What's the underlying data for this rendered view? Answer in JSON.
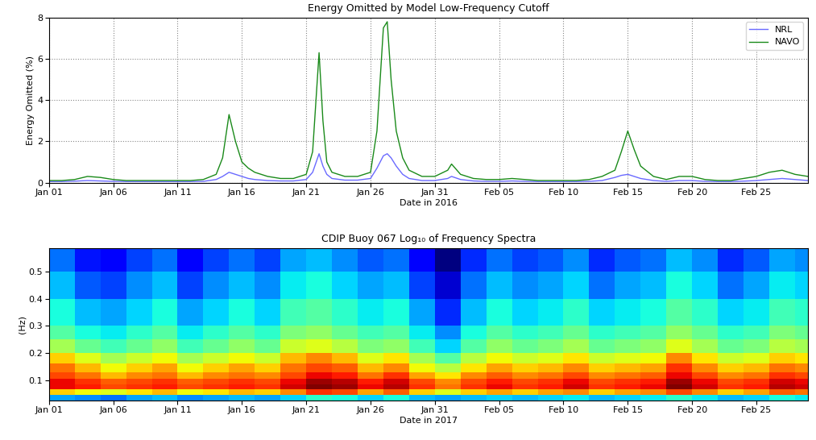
{
  "chart_data": [
    {
      "type": "line",
      "title": "Energy Omitted by Model Low-Frequency Cutoff",
      "x_label": "Date in 2016",
      "y_label": "Energy Omitted (%)",
      "xlim": [
        0,
        59
      ],
      "xticks": [
        {
          "value": 0,
          "label": "Jan 01"
        },
        {
          "value": 5,
          "label": "Jan 06"
        },
        {
          "value": 10,
          "label": "Jan 11"
        },
        {
          "value": 15,
          "label": "Jan 16"
        },
        {
          "value": 20,
          "label": "Jan 21"
        },
        {
          "value": 25,
          "label": "Jan 26"
        },
        {
          "value": 30,
          "label": "Jan 31"
        },
        {
          "value": 35,
          "label": "Feb 05"
        },
        {
          "value": 40,
          "label": "Feb 10"
        },
        {
          "value": 45,
          "label": "Feb 15"
        },
        {
          "value": 50,
          "label": "Feb 20"
        },
        {
          "value": 55,
          "label": "Feb 25"
        }
      ],
      "ylim": [
        0,
        8
      ],
      "yticks": [
        0,
        2,
        4,
        6,
        8
      ],
      "grid": true,
      "legend": "upper right",
      "x": [
        0,
        1,
        2,
        3,
        4,
        5,
        6,
        7,
        8,
        9,
        10,
        11,
        12,
        13,
        13.5,
        14,
        14.5,
        15,
        15.5,
        16,
        17,
        18,
        19,
        20,
        20.5,
        21,
        21.3,
        21.6,
        22,
        23,
        24,
        25,
        25.5,
        26,
        26.3,
        26.6,
        27,
        27.5,
        28,
        29,
        30,
        31,
        31.3,
        32,
        33,
        34,
        35,
        36,
        37,
        38,
        39,
        40,
        41,
        42,
        43,
        44,
        44.5,
        45,
        45.5,
        46,
        47,
        48,
        49,
        50,
        51,
        52,
        53,
        54,
        55,
        56,
        57,
        58,
        59
      ],
      "series": [
        {
          "name": "NRL",
          "color": "#6a6aff",
          "values": [
            0.05,
            0.05,
            0.07,
            0.1,
            0.08,
            0.06,
            0.05,
            0.05,
            0.05,
            0.05,
            0.05,
            0.05,
            0.06,
            0.15,
            0.3,
            0.5,
            0.4,
            0.3,
            0.2,
            0.15,
            0.1,
            0.08,
            0.08,
            0.15,
            0.5,
            1.4,
            0.8,
            0.4,
            0.2,
            0.12,
            0.12,
            0.2,
            0.7,
            1.3,
            1.4,
            1.2,
            0.8,
            0.4,
            0.2,
            0.1,
            0.1,
            0.2,
            0.3,
            0.15,
            0.08,
            0.06,
            0.06,
            0.08,
            0.06,
            0.05,
            0.05,
            0.05,
            0.05,
            0.06,
            0.1,
            0.25,
            0.35,
            0.4,
            0.3,
            0.2,
            0.1,
            0.06,
            0.1,
            0.1,
            0.06,
            0.05,
            0.05,
            0.07,
            0.1,
            0.15,
            0.2,
            0.15,
            0.1
          ]
        },
        {
          "name": "NAVO",
          "color": "#1a8a1a",
          "values": [
            0.1,
            0.1,
            0.15,
            0.3,
            0.25,
            0.15,
            0.1,
            0.1,
            0.1,
            0.1,
            0.1,
            0.1,
            0.15,
            0.4,
            1.2,
            3.3,
            2.0,
            1.0,
            0.7,
            0.5,
            0.3,
            0.2,
            0.2,
            0.4,
            1.5,
            6.3,
            3.0,
            1.0,
            0.5,
            0.3,
            0.3,
            0.5,
            2.5,
            7.5,
            7.8,
            5.0,
            2.5,
            1.2,
            0.6,
            0.3,
            0.3,
            0.6,
            0.9,
            0.4,
            0.2,
            0.15,
            0.15,
            0.2,
            0.15,
            0.1,
            0.1,
            0.1,
            0.1,
            0.15,
            0.3,
            0.6,
            1.5,
            2.5,
            1.6,
            0.8,
            0.3,
            0.15,
            0.3,
            0.3,
            0.15,
            0.1,
            0.1,
            0.2,
            0.3,
            0.5,
            0.6,
            0.4,
            0.3
          ]
        }
      ]
    },
    {
      "type": "heatmap",
      "title": "CDIP Buoy 067 Log₁₀ of Frequency Spectra",
      "x_label": "Date in 2017",
      "y_label": "(Hz)",
      "xlim": [
        0,
        59
      ],
      "xticks": [
        {
          "value": 0,
          "label": "Jan 01"
        },
        {
          "value": 5,
          "label": "Jan 06"
        },
        {
          "value": 10,
          "label": "Jan 11"
        },
        {
          "value": 15,
          "label": "Jan 16"
        },
        {
          "value": 20,
          "label": "Jan 21"
        },
        {
          "value": 25,
          "label": "Jan 26"
        },
        {
          "value": 30,
          "label": "Jan 31"
        },
        {
          "value": 35,
          "label": "Feb 05"
        },
        {
          "value": 40,
          "label": "Feb 10"
        },
        {
          "value": 45,
          "label": "Feb 15"
        },
        {
          "value": 50,
          "label": "Feb 20"
        },
        {
          "value": 55,
          "label": "Feb 25"
        }
      ],
      "ylim": [
        0.025,
        0.585
      ],
      "yticks": [
        0.1,
        0.2,
        0.3,
        0.4,
        0.5
      ],
      "grid": false,
      "x_edges": [
        0,
        2,
        4,
        6,
        8,
        10,
        12,
        14,
        16,
        18,
        20,
        22,
        24,
        26,
        28,
        30,
        32,
        34,
        36,
        38,
        40,
        42,
        44,
        46,
        48,
        50,
        52,
        54,
        56,
        58,
        60
      ],
      "y_edges": [
        0.025,
        0.045,
        0.065,
        0.085,
        0.105,
        0.13,
        0.16,
        0.2,
        0.25,
        0.3,
        0.4,
        0.5,
        0.585
      ],
      "cells": [
        [
          -2.0,
          -2.1,
          -2.2,
          -2.0,
          -1.9,
          -2.1,
          -2.0,
          -1.9,
          -2.0,
          -1.8,
          -1.5,
          -1.6,
          -1.8,
          -1.6,
          -1.9,
          -2.0,
          -1.9,
          -1.8,
          -1.9,
          -1.8,
          -1.7,
          -1.9,
          -1.8,
          -1.7,
          -1.5,
          -1.7,
          -1.9,
          -1.8,
          -1.6,
          -1.7
        ],
        [
          -0.3,
          -0.5,
          -0.6,
          -0.4,
          -0.2,
          -0.5,
          -0.4,
          -0.2,
          -0.3,
          0.0,
          0.4,
          0.3,
          -0.1,
          0.2,
          -0.3,
          -0.6,
          -0.3,
          -0.1,
          -0.3,
          -0.1,
          0.0,
          -0.3,
          -0.1,
          0.0,
          0.3,
          0.0,
          -0.3,
          -0.1,
          0.2,
          0.1
        ],
        [
          0.6,
          0.5,
          0.3,
          0.4,
          0.5,
          0.3,
          0.4,
          0.5,
          0.4,
          0.7,
          1.0,
          0.9,
          0.6,
          0.8,
          0.4,
          0.1,
          0.4,
          0.6,
          0.4,
          0.5,
          0.7,
          0.4,
          0.5,
          0.6,
          1.0,
          0.7,
          0.4,
          0.5,
          0.8,
          0.7
        ],
        [
          0.6,
          0.4,
          0.2,
          0.3,
          0.4,
          0.2,
          0.3,
          0.4,
          0.3,
          0.6,
          0.9,
          0.8,
          0.5,
          0.7,
          0.3,
          0.0,
          0.3,
          0.5,
          0.3,
          0.4,
          0.6,
          0.3,
          0.4,
          0.5,
          0.9,
          0.6,
          0.3,
          0.4,
          0.7,
          0.6
        ],
        [
          0.3,
          0.1,
          -0.2,
          0.0,
          0.1,
          -0.2,
          0.0,
          0.1,
          0.0,
          0.3,
          0.6,
          0.5,
          0.1,
          0.4,
          -0.1,
          -0.4,
          0.0,
          0.2,
          0.0,
          0.1,
          0.3,
          0.0,
          0.1,
          0.2,
          0.6,
          0.3,
          0.0,
          0.1,
          0.4,
          0.3
        ],
        [
          0.1,
          -0.2,
          -0.5,
          -0.3,
          -0.1,
          -0.5,
          -0.3,
          -0.1,
          -0.3,
          0.1,
          0.3,
          0.2,
          -0.2,
          0.0,
          -0.5,
          -0.8,
          -0.4,
          -0.1,
          -0.3,
          -0.2,
          0.0,
          -0.3,
          -0.2,
          -0.1,
          0.4,
          0.0,
          -0.3,
          -0.2,
          0.1,
          0.0
        ],
        [
          -0.3,
          -0.6,
          -0.9,
          -0.7,
          -0.5,
          -0.9,
          -0.7,
          -0.5,
          -0.7,
          -0.2,
          0.0,
          -0.2,
          -0.6,
          -0.4,
          -0.9,
          -1.3,
          -0.8,
          -0.5,
          -0.7,
          -0.6,
          -0.4,
          -0.7,
          -0.6,
          -0.5,
          0.0,
          -0.4,
          -0.7,
          -0.6,
          -0.3,
          -0.4
        ],
        [
          -0.9,
          -1.2,
          -1.4,
          -1.2,
          -1.0,
          -1.4,
          -1.2,
          -1.0,
          -1.2,
          -0.7,
          -0.6,
          -0.8,
          -1.1,
          -1.0,
          -1.4,
          -1.8,
          -1.3,
          -1.0,
          -1.2,
          -1.1,
          -0.9,
          -1.2,
          -1.1,
          -1.0,
          -0.6,
          -0.9,
          -1.2,
          -1.1,
          -0.8,
          -0.9
        ],
        [
          -1.3,
          -1.6,
          -1.7,
          -1.5,
          -1.3,
          -1.7,
          -1.5,
          -1.3,
          -1.5,
          -1.1,
          -1.0,
          -1.2,
          -1.4,
          -1.3,
          -1.7,
          -2.1,
          -1.6,
          -1.3,
          -1.5,
          -1.4,
          -1.2,
          -1.5,
          -1.4,
          -1.3,
          -1.0,
          -1.2,
          -1.5,
          -1.4,
          -1.1,
          -1.2
        ],
        [
          -1.6,
          -1.9,
          -2.0,
          -1.8,
          -1.6,
          -2.0,
          -1.8,
          -1.6,
          -1.8,
          -1.4,
          -1.3,
          -1.5,
          -1.7,
          -1.6,
          -2.0,
          -2.5,
          -1.9,
          -1.6,
          -1.8,
          -1.7,
          -1.5,
          -1.8,
          -1.7,
          -1.6,
          -1.3,
          -1.5,
          -1.8,
          -1.7,
          -1.4,
          -1.5
        ],
        [
          -1.9,
          -2.3,
          -2.4,
          -2.1,
          -1.9,
          -2.4,
          -2.1,
          -1.9,
          -2.1,
          -1.7,
          -1.6,
          -1.8,
          -2.0,
          -1.9,
          -2.4,
          -2.9,
          -2.2,
          -1.9,
          -2.1,
          -2.0,
          -1.8,
          -2.2,
          -2.0,
          -1.9,
          -1.6,
          -1.8,
          -2.2,
          -2.0,
          -1.7,
          -1.8
        ],
        [
          -2.2,
          -2.6,
          -2.7,
          -2.4,
          -2.2,
          -2.7,
          -2.4,
          -2.2,
          -2.4,
          -2.0,
          -1.9,
          -2.1,
          -2.3,
          -2.2,
          -2.7,
          -3.2,
          -2.5,
          -2.2,
          -2.4,
          -2.3,
          -2.1,
          -2.5,
          -2.3,
          -2.2,
          -1.9,
          -2.1,
          -2.5,
          -2.3,
          -2.0,
          -2.1
        ]
      ]
    }
  ]
}
